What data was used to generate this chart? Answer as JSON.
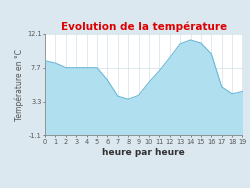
{
  "title": "Evolution de la température",
  "xlabel": "heure par heure",
  "ylabel": "Température en °C",
  "x": [
    0,
    1,
    2,
    3,
    4,
    5,
    6,
    7,
    8,
    9,
    10,
    11,
    12,
    13,
    14,
    15,
    16,
    17,
    18,
    19
  ],
  "y": [
    8.6,
    8.3,
    7.7,
    7.7,
    7.7,
    7.7,
    6.1,
    4.0,
    3.6,
    4.1,
    5.8,
    7.3,
    9.0,
    10.8,
    11.3,
    10.9,
    9.5,
    5.2,
    4.3,
    4.6
  ],
  "ylim": [
    -1.1,
    12.1
  ],
  "yticks": [
    -1.1,
    3.3,
    7.7,
    12.1
  ],
  "xticks": [
    0,
    1,
    2,
    3,
    4,
    5,
    6,
    7,
    8,
    9,
    10,
    11,
    12,
    13,
    14,
    15,
    16,
    17,
    18,
    19
  ],
  "fill_color": "#b0dff0",
  "line_color": "#6ab8d8",
  "title_color": "#dd0000",
  "bg_color": "#dce8f0",
  "plot_bg_color": "#ffffff",
  "grid_color": "#c8d8e0",
  "title_fontsize": 7.5,
  "label_fontsize": 5.5,
  "tick_fontsize": 4.8,
  "xlabel_fontsize": 6.5
}
